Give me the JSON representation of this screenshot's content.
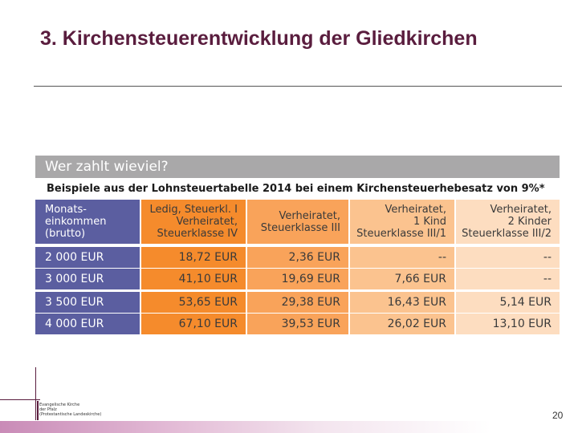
{
  "slide": {
    "title": "3. Kirchensteuerentwicklung der Gliedkirchen",
    "page_number": "20"
  },
  "table": {
    "header": "Wer zahlt wieviel?",
    "subtitle": "Beispiele aus der Lohnsteuertabelle 2014 bei einem Kirchensteuerhebesatz von 9%*",
    "columns": [
      "Monats-\neinkommen\n(brutto)",
      "Ledig, Steuerkl. I\nVerheiratet,\nSteuerklasse IV",
      "Verheiratet,\nSteuerklasse III",
      "Verheiratet,\n1 Kind\nSteuerklasse III/1",
      "Verheiratet,\n2 Kinder\nSteuerklasse III/2"
    ],
    "rows": [
      [
        "2 000 EUR",
        "18,72 EUR",
        "2,36 EUR",
        "--",
        "--"
      ],
      [
        "3 000 EUR",
        "41,10 EUR",
        "19,69 EUR",
        "7,66 EUR",
        "--"
      ],
      [
        "3 500 EUR",
        "53,65 EUR",
        "29,38 EUR",
        "16,43 EUR",
        "5,14 EUR"
      ],
      [
        "4 000 EUR",
        "67,10 EUR",
        "39,53 EUR",
        "26,02 EUR",
        "13,10 EUR"
      ]
    ]
  },
  "logo": {
    "text": "Evangelische Kirche\nder Pfalz\n(Protestantische Landeskirche)"
  }
}
